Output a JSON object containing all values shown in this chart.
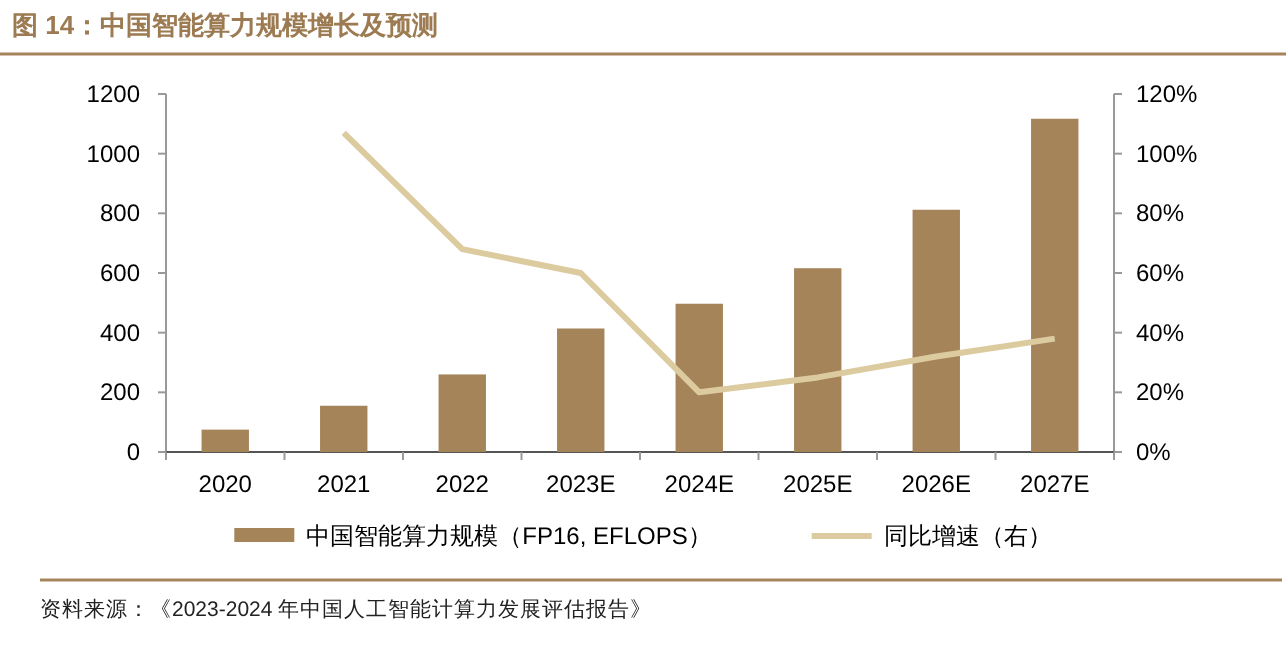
{
  "chart_data": {
    "type": "bar",
    "title": "图 14：中国智能算力规模增长及预测",
    "categories": [
      "2020",
      "2021",
      "2022",
      "2023E",
      "2024E",
      "2025E",
      "2026E",
      "2027E"
    ],
    "series": [
      {
        "name": "中国智能算力规模（FP16, EFLOPS）",
        "color": "#a6845a",
        "values": [
          75,
          155,
          260,
          414,
          497,
          616,
          812,
          1117
        ]
      },
      {
        "name": "同比增速（右）",
        "type": "line",
        "axis": "y2",
        "color": "#dccb9f",
        "values": [
          null,
          107,
          68,
          60,
          20,
          25,
          32,
          38
        ]
      }
    ],
    "ylim": [
      0,
      1200
    ],
    "yticks": [
      0,
      200,
      400,
      600,
      800,
      1000,
      1200
    ],
    "y2lim": [
      0,
      120
    ],
    "y2ticks": [
      {
        "value": 0,
        "label": "0%"
      },
      {
        "value": 20,
        "label": "20%"
      },
      {
        "value": 40,
        "label": "40%"
      },
      {
        "value": 60,
        "label": "60%"
      },
      {
        "value": 80,
        "label": "80%"
      },
      {
        "value": 100,
        "label": "100%"
      },
      {
        "value": 120,
        "label": "120%"
      }
    ],
    "legend": "bottom",
    "grid": false,
    "annotations": [
      "资料来源：《2023-2024 年中国人工智能计算力发展评估报告》"
    ]
  }
}
